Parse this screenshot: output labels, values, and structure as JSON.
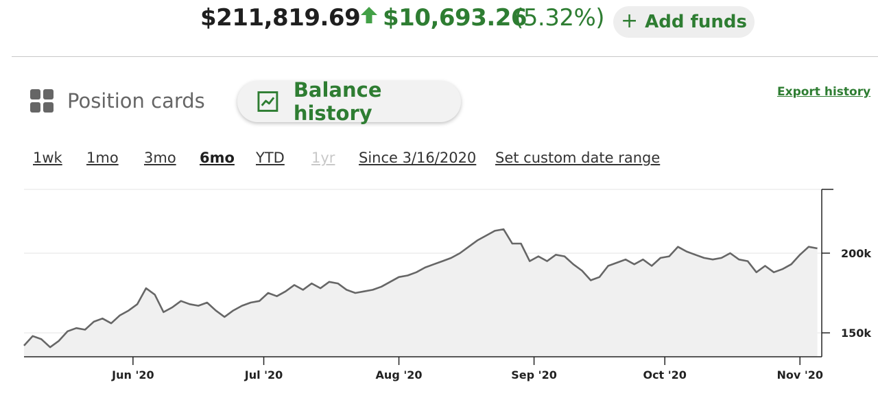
{
  "header": {
    "balance": "$211,819.69",
    "gain_amount": "$10,693.26",
    "gain_percent": "(5.32%)",
    "add_funds_label": "Add funds",
    "gain_color": "#2e7d32"
  },
  "view_tabs": {
    "position_cards": "Position cards",
    "balance_history": "Balance history",
    "active": "balance_history",
    "export_label": "Export history"
  },
  "ranges": {
    "items": [
      {
        "label": "1wk",
        "state": "normal"
      },
      {
        "label": "1mo",
        "state": "normal"
      },
      {
        "label": "3mo",
        "state": "normal"
      },
      {
        "label": "6mo",
        "state": "active"
      },
      {
        "label": "YTD",
        "state": "normal"
      },
      {
        "label": "1yr",
        "state": "disabled"
      },
      {
        "label": "Since 3/16/2020",
        "state": "normal"
      },
      {
        "label": "Set custom date range",
        "state": "normal"
      }
    ]
  },
  "chart_data": {
    "type": "area",
    "title": "",
    "xlabel": "",
    "ylabel": "",
    "y_axis_position": "right",
    "ylim": [
      135000,
      240000
    ],
    "y_ticks": [
      {
        "value": 150000,
        "label": "150k"
      },
      {
        "value": 200000,
        "label": "200k"
      }
    ],
    "x_ticks": [
      {
        "x": "2020-06-01",
        "label": "Jun '20"
      },
      {
        "x": "2020-07-01",
        "label": "Jul '20"
      },
      {
        "x": "2020-08-01",
        "label": "Aug '20"
      },
      {
        "x": "2020-09-01",
        "label": "Sep '20"
      },
      {
        "x": "2020-10-01",
        "label": "Oct '20"
      },
      {
        "x": "2020-11-01",
        "label": "Nov '20"
      }
    ],
    "grid": true,
    "line_color": "#666666",
    "fill_color": "#f0f0f0",
    "series": [
      {
        "x": [
          "2020-05-07",
          "2020-05-09",
          "2020-05-11",
          "2020-05-13",
          "2020-05-15",
          "2020-05-17",
          "2020-05-19",
          "2020-05-21",
          "2020-05-23",
          "2020-05-25",
          "2020-05-27",
          "2020-05-29",
          "2020-05-31",
          "2020-06-02",
          "2020-06-04",
          "2020-06-06",
          "2020-06-08",
          "2020-06-10",
          "2020-06-12",
          "2020-06-14",
          "2020-06-16",
          "2020-06-18",
          "2020-06-20",
          "2020-06-22",
          "2020-06-24",
          "2020-06-26",
          "2020-06-28",
          "2020-06-30",
          "2020-07-02",
          "2020-07-04",
          "2020-07-06",
          "2020-07-08",
          "2020-07-10",
          "2020-07-12",
          "2020-07-14",
          "2020-07-16",
          "2020-07-18",
          "2020-07-20",
          "2020-07-22",
          "2020-07-24",
          "2020-07-26",
          "2020-07-28",
          "2020-07-30",
          "2020-08-01",
          "2020-08-03",
          "2020-08-05",
          "2020-08-07",
          "2020-08-09",
          "2020-08-11",
          "2020-08-13",
          "2020-08-15",
          "2020-08-17",
          "2020-08-19",
          "2020-08-21",
          "2020-08-23",
          "2020-08-25",
          "2020-08-27",
          "2020-08-29",
          "2020-08-31",
          "2020-09-02",
          "2020-09-04",
          "2020-09-06",
          "2020-09-08",
          "2020-09-10",
          "2020-09-12",
          "2020-09-14",
          "2020-09-16",
          "2020-09-18",
          "2020-09-20",
          "2020-09-22",
          "2020-09-24",
          "2020-09-26",
          "2020-09-28",
          "2020-09-30",
          "2020-10-02",
          "2020-10-04",
          "2020-10-06",
          "2020-10-08",
          "2020-10-10",
          "2020-10-12",
          "2020-10-14",
          "2020-10-16",
          "2020-10-18",
          "2020-10-20",
          "2020-10-22",
          "2020-10-24",
          "2020-10-26",
          "2020-10-28",
          "2020-10-30",
          "2020-11-01",
          "2020-11-03",
          "2020-11-05"
        ],
        "values": [
          142000,
          148000,
          146000,
          141000,
          145000,
          151000,
          153000,
          152000,
          157000,
          159000,
          156000,
          161000,
          164000,
          168000,
          178000,
          174000,
          163000,
          166000,
          170000,
          168000,
          167000,
          169000,
          164000,
          160000,
          164000,
          167000,
          169000,
          170000,
          175000,
          173000,
          176000,
          180000,
          177000,
          181000,
          178000,
          182000,
          181000,
          177000,
          175000,
          176000,
          177000,
          179000,
          182000,
          185000,
          186000,
          188000,
          191000,
          193000,
          195000,
          197000,
          200000,
          204000,
          208000,
          211000,
          214000,
          215000,
          206000,
          206000,
          195000,
          198000,
          195000,
          199000,
          198000,
          193000,
          189000,
          183000,
          185000,
          192000,
          194000,
          196000,
          193000,
          196000,
          192000,
          197000,
          198000,
          204000,
          201000,
          199000,
          197000,
          196000,
          197000,
          200000,
          196000,
          195000,
          188000,
          192000,
          188000,
          190000,
          193000,
          199000,
          204000,
          203000
        ]
      }
    ]
  }
}
